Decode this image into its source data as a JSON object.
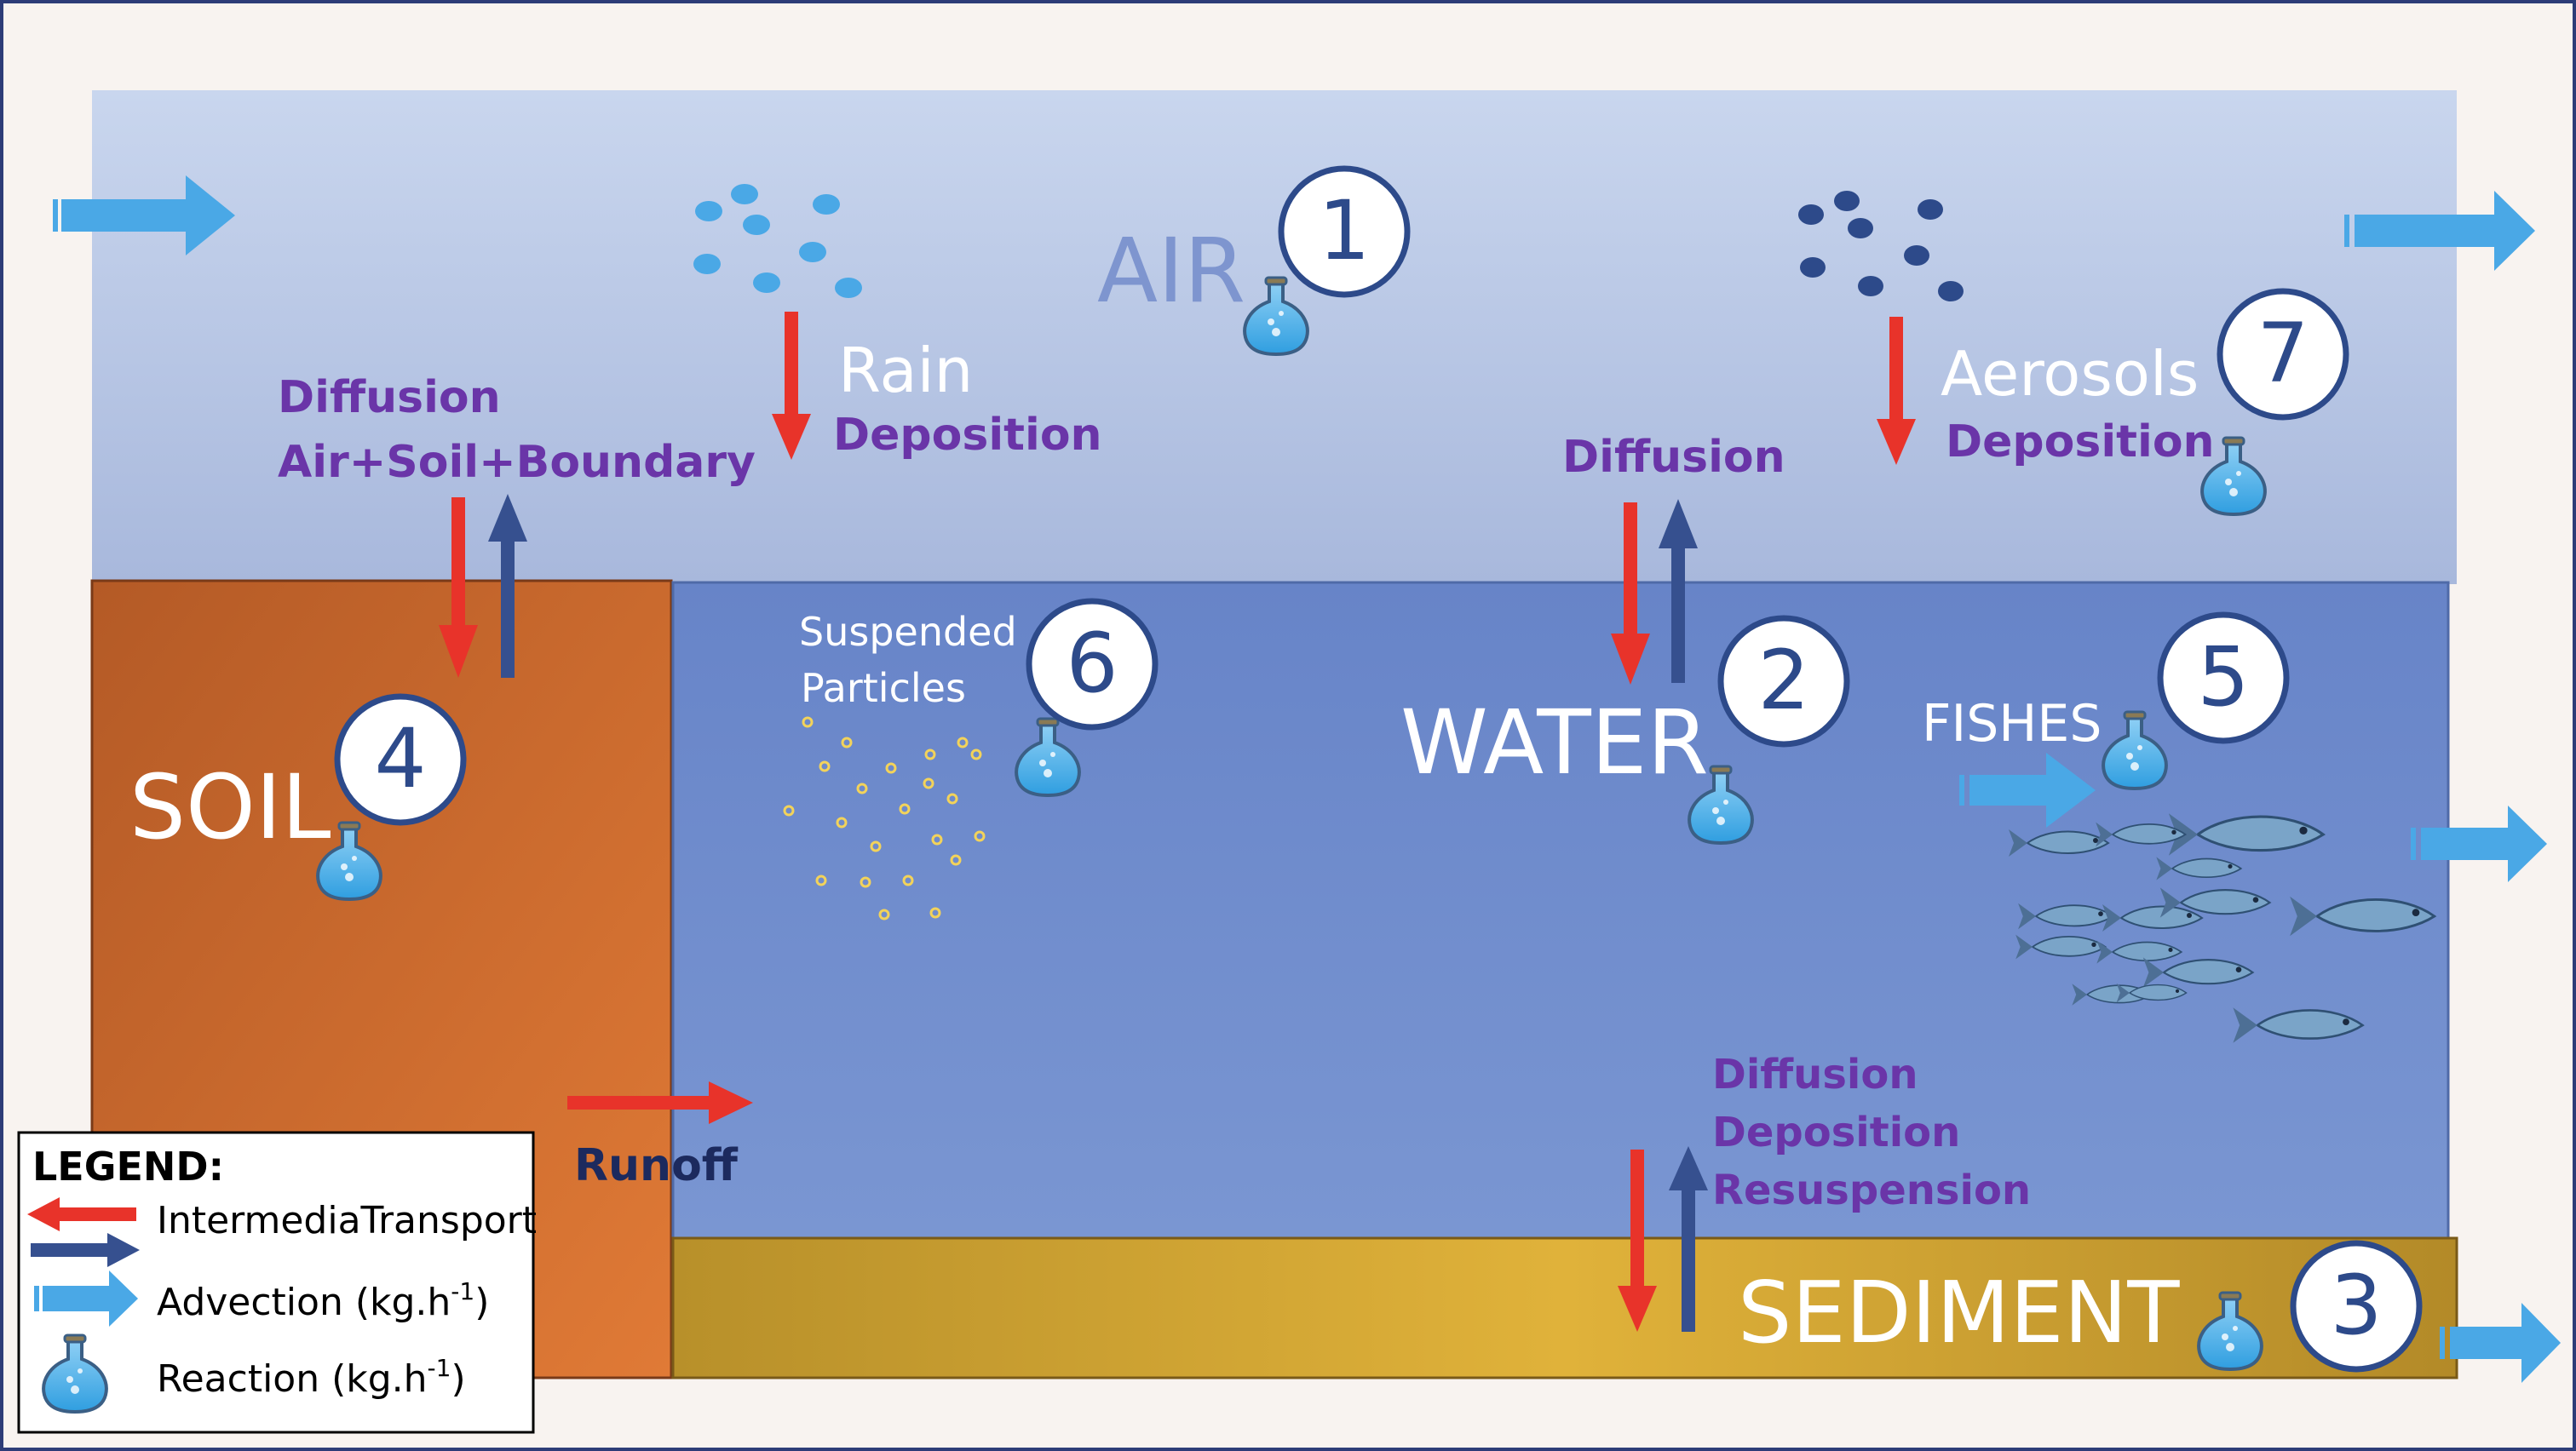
{
  "compartments": {
    "air": {
      "label": "AIR",
      "number": "1"
    },
    "water": {
      "label": "WATER",
      "number": "2"
    },
    "sediment": {
      "label": "SEDIMENT",
      "number": "3"
    },
    "soil": {
      "label": "SOIL",
      "number": "4"
    },
    "fishes": {
      "label": "FISHES",
      "number": "5"
    },
    "suspended": {
      "label_line1": "Suspended",
      "label_line2": "Particles",
      "number": "6"
    },
    "aerosols": {
      "label": "Aerosols",
      "number": "7"
    }
  },
  "processes": {
    "soil_air_line1": "Diffusion",
    "soil_air_line2": "Air+Soil+Boundary",
    "rain": "Rain",
    "rain_deposition": "Deposition",
    "air_water_diffusion": "Diffusion",
    "aerosol_deposition": "Deposition",
    "runoff": "Runoff",
    "water_sed_line1": "Diffusion",
    "water_sed_line2": "Deposition",
    "water_sed_line3": "Resuspension"
  },
  "legend": {
    "title": "LEGEND:",
    "intermedia": "IntermediaTransport",
    "advection": "Advection (kg.h",
    "advection_sup": "-1",
    "advection_end": ")",
    "reaction": "Reaction (kg.h",
    "reaction_sup": "-1",
    "reaction_end": ")"
  },
  "colors": {
    "intermedia_arrow": "#e8332a",
    "return_arrow": "#36508f",
    "advection_arrow": "#4aa8e6",
    "soil": "#c8642a",
    "water": "#6f8ccd",
    "sediment": "#d4a52e",
    "air_top": "#c8d4ec",
    "air_bottom": "#a9b9dd",
    "process_text": "#6a35a8",
    "circle_stroke": "#2d4a8a"
  }
}
